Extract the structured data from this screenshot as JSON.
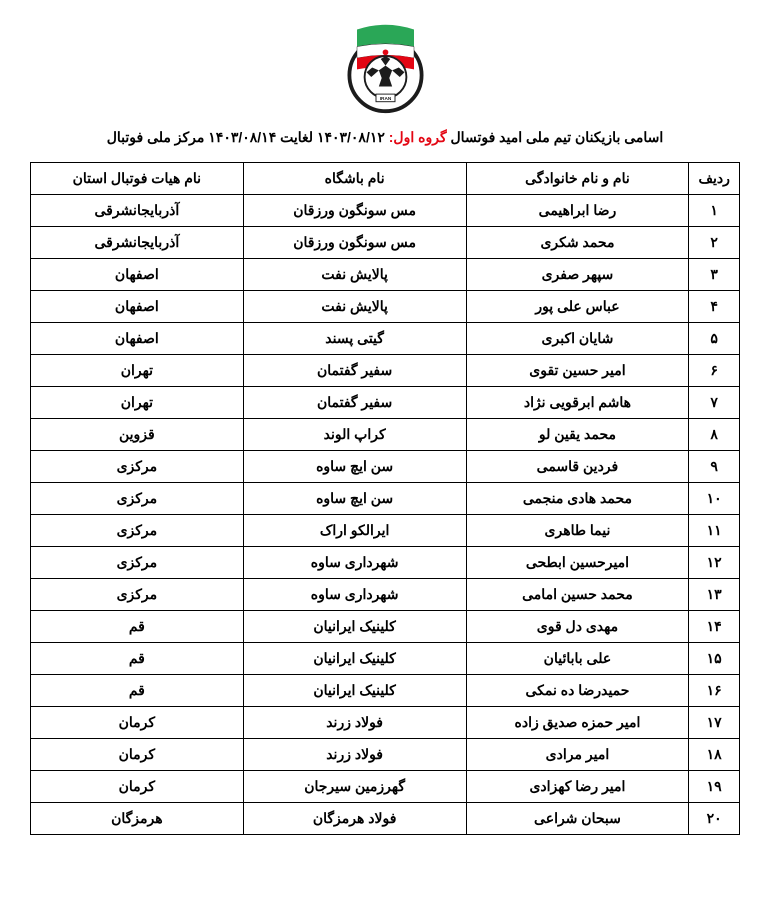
{
  "logo": {
    "flag_stripes": [
      "#2aa757",
      "#ffffff",
      "#e30613"
    ],
    "ball_bg": "#1c1c1c",
    "outline": "#1c1c1c"
  },
  "title": {
    "prefix": "اسامی بازیکنان تیم ملی امید فوتسال ",
    "group": "گروه اول:",
    "dates": " ۱۴۰۳/۰۸/۱۲ لغایت ۱۴۰۳/۰۸/۱۴ مرکز ملی فوتبال"
  },
  "headers": {
    "idx": "ردیف",
    "name": "نام و نام خانوادگی",
    "club": "نام باشگاه",
    "province": "نام هیات فوتبال استان"
  },
  "rows": [
    {
      "idx": "۱",
      "name": "رضا ابراهیمی",
      "club": "مس سونگون ورزقان",
      "province": "آذربایجانشرقی"
    },
    {
      "idx": "۲",
      "name": "محمد شکری",
      "club": "مس سونگون ورزقان",
      "province": "آذربایجانشرقی"
    },
    {
      "idx": "۳",
      "name": "سپهر صفری",
      "club": "پالایش نفت",
      "province": "اصفهان"
    },
    {
      "idx": "۴",
      "name": "عباس علی پور",
      "club": "پالایش نفت",
      "province": "اصفهان"
    },
    {
      "idx": "۵",
      "name": "شایان اکبری",
      "club": "گیتی پسند",
      "province": "اصفهان"
    },
    {
      "idx": "۶",
      "name": "امیر حسین تقوی",
      "club": "سفیر گفتمان",
      "province": "تهران"
    },
    {
      "idx": "۷",
      "name": "هاشم ابرقویی نژاد",
      "club": "سفیر گفتمان",
      "province": "تهران"
    },
    {
      "idx": "۸",
      "name": "محمد یقین لو",
      "club": "کراپ الوند",
      "province": "قزوین"
    },
    {
      "idx": "۹",
      "name": "فردین قاسمی",
      "club": "سن ایچ ساوه",
      "province": "مرکزی"
    },
    {
      "idx": "۱۰",
      "name": "محمد هادی منجمی",
      "club": "سن ایچ ساوه",
      "province": "مرکزی"
    },
    {
      "idx": "۱۱",
      "name": "نیما طاهری",
      "club": "ایرالکو اراک",
      "province": "مرکزی"
    },
    {
      "idx": "۱۲",
      "name": "امیرحسین ابطحی",
      "club": "شهرداری ساوه",
      "province": "مرکزی"
    },
    {
      "idx": "۱۳",
      "name": "محمد حسین امامی",
      "club": "شهرداری ساوه",
      "province": "مرکزی"
    },
    {
      "idx": "۱۴",
      "name": "مهدی دل قوی",
      "club": "کلینیک ایرانیان",
      "province": "قم"
    },
    {
      "idx": "۱۵",
      "name": "علی بابائیان",
      "club": "کلینیک ایرانیان",
      "province": "قم"
    },
    {
      "idx": "۱۶",
      "name": "حمیدرضا ده نمکی",
      "club": "کلینیک ایرانیان",
      "province": "قم"
    },
    {
      "idx": "۱۷",
      "name": "امیر حمزه صدیق زاده",
      "club": "فولاد زرند",
      "province": "کرمان"
    },
    {
      "idx": "۱۸",
      "name": "امیر مرادی",
      "club": "فولاد زرند",
      "province": "کرمان"
    },
    {
      "idx": "۱۹",
      "name": "امیر رضا کهزادی",
      "club": "گهرزمین سیرجان",
      "province": "کرمان"
    },
    {
      "idx": "۲۰",
      "name": "سبحان شراعی",
      "club": "فولاد هرمزگان",
      "province": "هرمزگان"
    }
  ]
}
